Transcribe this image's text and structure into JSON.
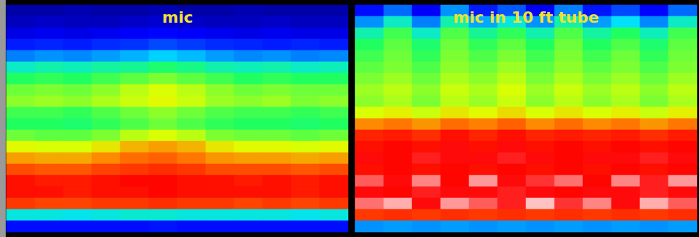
{
  "chart_data": [
    {
      "type": "heatmap",
      "title": "mic",
      "tick_labels": false,
      "zlim": [
        0,
        100
      ],
      "cells": [
        [
          4,
          4,
          5,
          4,
          4,
          5,
          4,
          4,
          5,
          4,
          4,
          4
        ],
        [
          6,
          7,
          6,
          6,
          7,
          8,
          7,
          6,
          6,
          7,
          6,
          6
        ],
        [
          10,
          11,
          10,
          11,
          12,
          13,
          12,
          11,
          10,
          11,
          10,
          10
        ],
        [
          16,
          17,
          16,
          18,
          19,
          22,
          20,
          18,
          17,
          16,
          17,
          16
        ],
        [
          28,
          30,
          29,
          31,
          33,
          36,
          34,
          31,
          29,
          30,
          28,
          29
        ],
        [
          42,
          44,
          43,
          45,
          46,
          49,
          47,
          44,
          43,
          44,
          42,
          43
        ],
        [
          50,
          51,
          50,
          52,
          54,
          56,
          54,
          52,
          50,
          51,
          50,
          50
        ],
        [
          55,
          56,
          55,
          57,
          60,
          62,
          60,
          57,
          55,
          56,
          55,
          55
        ],
        [
          57,
          58,
          57,
          59,
          61,
          63,
          61,
          58,
          57,
          58,
          56,
          57
        ],
        [
          52,
          52,
          51,
          53,
          55,
          57,
          55,
          53,
          52,
          52,
          51,
          52
        ],
        [
          50,
          50,
          49,
          51,
          53,
          55,
          53,
          51,
          50,
          50,
          49,
          50
        ],
        [
          55,
          54,
          54,
          56,
          60,
          62,
          60,
          56,
          55,
          55,
          54,
          55
        ],
        [
          63,
          62,
          62,
          65,
          70,
          72,
          70,
          65,
          63,
          63,
          62,
          63
        ],
        [
          72,
          71,
          71,
          74,
          77,
          78,
          76,
          73,
          72,
          72,
          71,
          72
        ],
        [
          80,
          79,
          79,
          81,
          82,
          83,
          82,
          80,
          80,
          80,
          79,
          80
        ],
        [
          86,
          85,
          85,
          86,
          87,
          87,
          86,
          86,
          85,
          86,
          85,
          86
        ],
        [
          86,
          86,
          85,
          86,
          86,
          87,
          86,
          86,
          86,
          86,
          85,
          86
        ],
        [
          82,
          81,
          81,
          82,
          82,
          83,
          82,
          82,
          81,
          82,
          81,
          82
        ],
        [
          40,
          40,
          39,
          40,
          41,
          41,
          40,
          40,
          40,
          40,
          39,
          40
        ],
        [
          14,
          14,
          14,
          14,
          14,
          15,
          14,
          14,
          14,
          14,
          14,
          14
        ]
      ]
    },
    {
      "type": "heatmap",
      "title": "mic in 10 ft tube",
      "tick_labels": false,
      "zlim": [
        0,
        100
      ],
      "cells": [
        [
          14,
          26,
          12,
          30,
          16,
          24,
          12,
          28,
          15,
          22,
          13,
          26
        ],
        [
          30,
          42,
          28,
          44,
          32,
          40,
          30,
          44,
          31,
          38,
          29,
          42
        ],
        [
          44,
          52,
          42,
          53,
          46,
          51,
          44,
          53,
          45,
          50,
          43,
          52
        ],
        [
          50,
          54,
          49,
          55,
          51,
          54,
          50,
          55,
          50,
          53,
          49,
          54
        ],
        [
          52,
          55,
          51,
          56,
          53,
          56,
          52,
          56,
          52,
          55,
          51,
          55
        ],
        [
          54,
          56,
          53,
          57,
          55,
          58,
          54,
          57,
          54,
          56,
          53,
          56
        ],
        [
          56,
          58,
          55,
          59,
          57,
          60,
          56,
          59,
          56,
          58,
          55,
          58
        ],
        [
          58,
          60,
          57,
          61,
          59,
          62,
          58,
          61,
          58,
          60,
          57,
          60
        ],
        [
          57,
          59,
          56,
          60,
          58,
          61,
          57,
          60,
          57,
          59,
          56,
          59
        ],
        [
          62,
          64,
          61,
          65,
          63,
          66,
          62,
          65,
          62,
          64,
          61,
          64
        ],
        [
          74,
          76,
          73,
          77,
          75,
          78,
          74,
          77,
          74,
          76,
          73,
          76
        ],
        [
          84,
          85,
          83,
          86,
          84,
          86,
          84,
          85,
          84,
          85,
          83,
          85
        ],
        [
          86,
          87,
          86,
          88,
          86,
          88,
          86,
          87,
          86,
          87,
          86,
          87
        ],
        [
          88,
          87,
          89,
          88,
          88,
          89,
          88,
          87,
          88,
          88,
          89,
          88
        ],
        [
          86,
          87,
          86,
          87,
          86,
          87,
          86,
          87,
          86,
          87,
          86,
          87
        ],
        [
          92,
          88,
          94,
          87,
          95,
          88,
          90,
          93,
          87,
          94,
          89,
          95
        ],
        [
          88,
          87,
          89,
          88,
          88,
          89,
          88,
          87,
          88,
          88,
          89,
          88
        ],
        [
          93,
          96,
          88,
          95,
          92,
          89,
          97,
          90,
          94,
          88,
          96,
          92
        ],
        [
          82,
          83,
          82,
          83,
          82,
          83,
          82,
          83,
          82,
          83,
          82,
          83
        ],
        [
          30,
          31,
          30,
          31,
          30,
          31,
          30,
          31,
          30,
          31,
          30,
          31
        ]
      ]
    }
  ]
}
